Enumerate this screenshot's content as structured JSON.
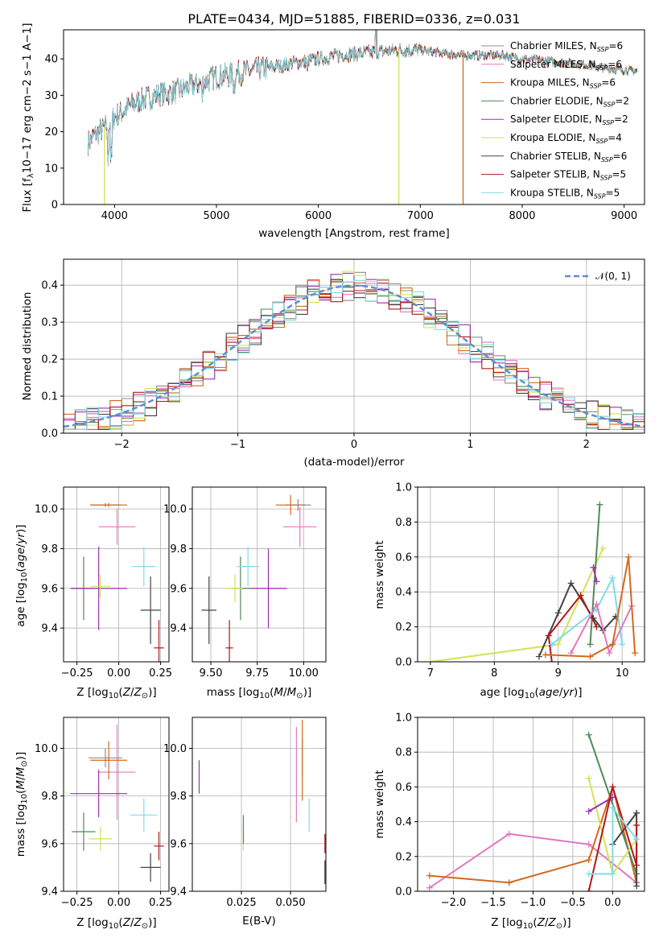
{
  "title": "PLATE=0434, MJD=51885, FIBERID=0336, z=0.031",
  "colors": {
    "Chabrier MILES": "#8c8c8c",
    "Salpeter MILES": "#e377c2",
    "Kroupa MILES": "#d2691e",
    "Chabrier ELODIE": "#4f8a57",
    "Salpeter ELODIE": "#9b30ae",
    "Kroupa ELODIE": "#d4e157",
    "Chabrier STELIB": "#444444",
    "Salpeter STELIB": "#b01a1a",
    "Kroupa STELIB": "#80dbe6"
  },
  "legend_spectrum": [
    {
      "model": "Chabrier MILES",
      "text": "Chabrier MILES, N",
      "sub": "SSP",
      "val": "=6"
    },
    {
      "model": "Salpeter MILES",
      "text": "Salpeter MILES, N",
      "sub": "SSP",
      "val": "=6"
    },
    {
      "model": "Kroupa MILES",
      "text": "Kroupa MILES, N",
      "sub": "SSP",
      "val": "=6"
    },
    {
      "model": "Chabrier ELODIE",
      "text": "Chabrier ELODIE, N",
      "sub": "SSP",
      "val": "=2"
    },
    {
      "model": "Salpeter ELODIE",
      "text": "Salpeter ELODIE, N",
      "sub": "SSP",
      "val": "=2"
    },
    {
      "model": "Kroupa ELODIE",
      "text": "Kroupa ELODIE, N",
      "sub": "SSP",
      "val": "=4"
    },
    {
      "model": "Chabrier STELIB",
      "text": "Chabrier STELIB, N",
      "sub": "SSP",
      "val": "=6"
    },
    {
      "model": "Salpeter STELIB",
      "text": "Salpeter STELIB, N",
      "sub": "SSP",
      "val": "=5"
    },
    {
      "model": "Kroupa STELIB",
      "text": "Kroupa STELIB, N",
      "sub": "SSP",
      "val": "=5"
    }
  ],
  "chart_data": [
    {
      "id": "spectrum",
      "type": "line",
      "xlabel": "wavelength [Angstrom, rest frame]",
      "ylabel": "Flux [fλ10⁻¹⁷ erg cm⁻² s⁻¹ A⁻¹]",
      "xlim": [
        3500,
        9200
      ],
      "ylim": [
        0,
        48
      ],
      "xticks": [
        4000,
        5000,
        6000,
        7000,
        8000,
        9000
      ],
      "yticks": [
        0,
        10,
        20,
        30,
        40
      ],
      "continuum": [
        [
          3740,
          17
        ],
        [
          3800,
          19
        ],
        [
          3900,
          21
        ],
        [
          4000,
          24
        ],
        [
          4100,
          26
        ],
        [
          4200,
          28
        ],
        [
          4400,
          30
        ],
        [
          4600,
          31
        ],
        [
          4800,
          33
        ],
        [
          5000,
          35
        ],
        [
          5200,
          36
        ],
        [
          5400,
          37
        ],
        [
          5600,
          38
        ],
        [
          5800,
          39
        ],
        [
          6000,
          40
        ],
        [
          6200,
          41
        ],
        [
          6400,
          41.5
        ],
        [
          6600,
          42
        ],
        [
          6800,
          42.5
        ],
        [
          7000,
          42.5
        ],
        [
          7200,
          41.5
        ],
        [
          7400,
          41
        ],
        [
          7600,
          41
        ],
        [
          7800,
          41
        ],
        [
          8000,
          40
        ],
        [
          8200,
          39.5
        ],
        [
          8400,
          39
        ],
        [
          8600,
          38.5
        ],
        [
          8800,
          37.5
        ],
        [
          9000,
          37
        ],
        [
          9130,
          36.5
        ]
      ],
      "drops": [
        {
          "model": "Kroupa ELODIE",
          "x": 6790
        },
        {
          "model": "Kroupa MILES",
          "x": 7420
        },
        {
          "model": "Kroupa ELODIE",
          "x": 3900
        }
      ]
    },
    {
      "id": "residuals",
      "type": "histogram",
      "xlabel": "(data-model)/error",
      "ylabel": "Normed distribution",
      "xlim": [
        -2.5,
        2.5
      ],
      "ylim": [
        0,
        0.47
      ],
      "xticks": [
        -2,
        -1,
        0,
        1,
        2
      ],
      "yticks": [
        0.0,
        0.1,
        0.2,
        0.3,
        0.4
      ],
      "bin_width": 0.1,
      "reference": {
        "name": "N(0,1)",
        "color": "#5b8fd6"
      }
    },
    {
      "id": "age-vs-Z",
      "type": "errorbar",
      "xlabel": "Z [log10(Z/Z⊙)]",
      "ylabel": "age [log10(age/yr)]",
      "xlim": [
        -0.33,
        0.3
      ],
      "ylim": [
        9.23,
        10.11
      ],
      "xticks": [
        -0.25,
        0.0,
        0.25
      ],
      "yticks": [
        9.4,
        9.6,
        9.8,
        10.0
      ],
      "points": [
        {
          "model": "Chabrier MILES",
          "x": -0.08,
          "y": 10.02,
          "xerr": 0.09,
          "yerr": 0.01
        },
        {
          "model": "Salpeter MILES",
          "x": -0.01,
          "y": 9.91,
          "xerr": 0.11,
          "yerr": 0.09
        },
        {
          "model": "Kroupa MILES",
          "x": -0.06,
          "y": 10.02,
          "xerr": 0.11,
          "yerr": 0.01
        },
        {
          "model": "Chabrier ELODIE",
          "x": -0.21,
          "y": 9.6,
          "xerr": 0.07,
          "yerr": 0.16
        },
        {
          "model": "Salpeter ELODIE",
          "x": -0.12,
          "y": 9.6,
          "xerr": 0.17,
          "yerr": 0.21
        },
        {
          "model": "Kroupa ELODIE",
          "x": -0.11,
          "y": 9.61,
          "xerr": 0.06,
          "yerr": 0.06
        },
        {
          "model": "Chabrier STELIB",
          "x": 0.19,
          "y": 9.49,
          "xerr": 0.06,
          "yerr": 0.17
        },
        {
          "model": "Salpeter STELIB",
          "x": 0.24,
          "y": 9.3,
          "xerr": 0.03,
          "yerr": 0.14
        },
        {
          "model": "Kroupa STELIB",
          "x": 0.15,
          "y": 9.71,
          "xerr": 0.07,
          "yerr": 0.1
        }
      ]
    },
    {
      "id": "age-vs-mass",
      "type": "errorbar",
      "xlabel": "mass [log10(M/M⊙)]",
      "ylabel": "",
      "xlim": [
        9.4,
        10.12
      ],
      "ylim": [
        9.23,
        10.11
      ],
      "xticks": [
        9.5,
        9.75,
        10.0
      ],
      "yticks": [
        9.4,
        9.6,
        9.8,
        10.0
      ],
      "points": [
        {
          "model": "Chabrier MILES",
          "x": 9.97,
          "y": 10.02,
          "xerr": 0.07,
          "yerr": 0.03
        },
        {
          "model": "Salpeter MILES",
          "x": 9.98,
          "y": 9.91,
          "xerr": 0.09,
          "yerr": 0.1
        },
        {
          "model": "Kroupa MILES",
          "x": 9.93,
          "y": 10.02,
          "xerr": 0.08,
          "yerr": 0.05
        },
        {
          "model": "Chabrier ELODIE",
          "x": 9.66,
          "y": 9.6,
          "xerr": 0.05,
          "yerr": 0.16
        },
        {
          "model": "Salpeter ELODIE",
          "x": 9.81,
          "y": 9.6,
          "xerr": 0.1,
          "yerr": 0.2
        },
        {
          "model": "Kroupa ELODIE",
          "x": 9.63,
          "y": 9.6,
          "xerr": 0.04,
          "yerr": 0.07
        },
        {
          "model": "Chabrier STELIB",
          "x": 9.49,
          "y": 9.49,
          "xerr": 0.04,
          "yerr": 0.17
        },
        {
          "model": "Salpeter STELIB",
          "x": 9.6,
          "y": 9.3,
          "xerr": 0.02,
          "yerr": 0.14
        },
        {
          "model": "Kroupa STELIB",
          "x": 9.7,
          "y": 9.71,
          "xerr": 0.06,
          "yerr": 0.1
        }
      ]
    },
    {
      "id": "weight-vs-age",
      "type": "line",
      "xlabel": "age [log10(age/yr)]",
      "ylabel": "mass weight",
      "xlim": [
        6.8,
        10.35
      ],
      "ylim": [
        0.0,
        1.0
      ],
      "xticks": [
        7,
        8,
        9,
        10
      ],
      "yticks": [
        0.0,
        0.2,
        0.4,
        0.6,
        0.8,
        1.0
      ],
      "series": [
        {
          "model": "Kroupa ELODIE",
          "x": [
            7.0,
            9.0,
            9.7
          ],
          "y": [
            0.0,
            0.1,
            0.65
          ]
        },
        {
          "model": "Chabrier ELODIE",
          "x": [
            9.5,
            9.65
          ],
          "y": [
            0.1,
            0.9
          ]
        },
        {
          "model": "Salpeter ELODIE",
          "x": [
            9.6,
            9.55
          ],
          "y": [
            0.46,
            0.54
          ]
        },
        {
          "model": "Chabrier STELIB",
          "x": [
            8.7,
            9.0,
            9.2,
            9.55,
            9.7,
            9.9
          ],
          "y": [
            0.03,
            0.28,
            0.45,
            0.25,
            0.18,
            0.26
          ]
        },
        {
          "model": "Salpeter STELIB",
          "x": [
            8.9,
            8.85,
            9.35,
            9.6
          ],
          "y": [
            0.0,
            0.15,
            0.38,
            0.2
          ]
        },
        {
          "model": "Kroupa STELIB",
          "x": [
            8.9,
            9.6,
            9.85,
            10.0
          ],
          "y": [
            0.1,
            0.3,
            0.48,
            0.1
          ]
        },
        {
          "model": "Salpeter MILES",
          "x": [
            9.2,
            9.6,
            9.8,
            10.15
          ],
          "y": [
            0.05,
            0.33,
            0.05,
            0.32
          ]
        },
        {
          "model": "Kroupa MILES",
          "x": [
            8.8,
            9.5,
            9.85,
            10.1,
            10.2
          ],
          "y": [
            0.04,
            0.03,
            0.1,
            0.6,
            0.05
          ]
        }
      ]
    },
    {
      "id": "mass-vs-Z",
      "type": "errorbar",
      "xlabel": "Z [log10(Z/Z⊙)]",
      "ylabel": "mass [log10(M/M⊙)]",
      "xlim": [
        -0.33,
        0.3
      ],
      "ylim": [
        9.4,
        10.13
      ],
      "xticks": [
        -0.25,
        0.0,
        0.25
      ],
      "yticks": [
        9.4,
        9.6,
        9.8,
        10.0
      ],
      "points": [
        {
          "model": "Chabrier MILES",
          "x": -0.08,
          "y": 9.96,
          "xerr": 0.1,
          "yerr": 0.04
        },
        {
          "model": "Salpeter MILES",
          "x": -0.01,
          "y": 9.9,
          "xerr": 0.11,
          "yerr": 0.2
        },
        {
          "model": "Kroupa MILES",
          "x": -0.06,
          "y": 9.95,
          "xerr": 0.11,
          "yerr": 0.08
        },
        {
          "model": "Chabrier ELODIE",
          "x": -0.21,
          "y": 9.65,
          "xerr": 0.07,
          "yerr": 0.08
        },
        {
          "model": "Salpeter ELODIE",
          "x": -0.12,
          "y": 9.81,
          "xerr": 0.17,
          "yerr": 0.1
        },
        {
          "model": "Kroupa ELODIE",
          "x": -0.11,
          "y": 9.62,
          "xerr": 0.07,
          "yerr": 0.05
        },
        {
          "model": "Chabrier STELIB",
          "x": 0.19,
          "y": 9.5,
          "xerr": 0.06,
          "yerr": 0.06
        },
        {
          "model": "Salpeter STELIB",
          "x": 0.24,
          "y": 9.59,
          "xerr": 0.03,
          "yerr": 0.06
        },
        {
          "model": "Kroupa STELIB",
          "x": 0.15,
          "y": 9.72,
          "xerr": 0.08,
          "yerr": 0.07
        }
      ]
    },
    {
      "id": "mass-vs-EBV",
      "type": "errorbar",
      "xlabel": "E(B-V)",
      "ylabel": "",
      "xlim": [
        0.0,
        0.068
      ],
      "ylim": [
        9.4,
        10.13
      ],
      "xticks": [
        0.025,
        0.05
      ],
      "yticks": [
        9.4,
        9.6,
        9.8,
        10.0
      ],
      "points": [
        {
          "model": "Salpeter ELODIE",
          "x": 0.0035,
          "y": 9.88,
          "xerr": 0.0,
          "yerr": 0.07
        },
        {
          "model": "Kroupa ELODIE",
          "x": 0.026,
          "y": 9.62,
          "xerr": 0.0,
          "yerr": 0.05
        },
        {
          "model": "Chabrier ELODIE",
          "x": 0.026,
          "y": 9.66,
          "xerr": 0.0,
          "yerr": 0.06
        },
        {
          "model": "Salpeter MILES",
          "x": 0.053,
          "y": 9.89,
          "xerr": 0.0,
          "yerr": 0.2
        },
        {
          "model": "Chabrier MILES",
          "x": 0.056,
          "y": 9.96,
          "xerr": 0.0,
          "yerr": 0.08
        },
        {
          "model": "Kroupa MILES",
          "x": 0.056,
          "y": 9.95,
          "xerr": 0.0,
          "yerr": 0.17
        },
        {
          "model": "Kroupa STELIB",
          "x": 0.0595,
          "y": 9.72,
          "xerr": 0.0,
          "yerr": 0.07
        },
        {
          "model": "Salpeter STELIB",
          "x": 0.0675,
          "y": 9.6,
          "xerr": 0.0,
          "yerr": 0.04
        },
        {
          "model": "Chabrier STELIB",
          "x": 0.0675,
          "y": 9.48,
          "xerr": 0.0,
          "yerr": 0.05
        }
      ]
    },
    {
      "id": "weight-vs-Z",
      "type": "line",
      "xlabel": "Z [log10(Z/Z⊙)]",
      "ylabel": "mass weight",
      "xlim": [
        -2.45,
        0.4
      ],
      "ylim": [
        0.0,
        1.0
      ],
      "xticks": [
        -2.0,
        -1.5,
        -1.0,
        -0.5,
        0.0
      ],
      "yticks": [
        0.0,
        0.2,
        0.4,
        0.6,
        0.8,
        1.0
      ],
      "series": [
        {
          "model": "Salpeter MILES",
          "x": [
            -2.3,
            -1.3,
            -0.3,
            0.3
          ],
          "y": [
            0.02,
            0.33,
            0.27,
            0.05
          ]
        },
        {
          "model": "Kroupa MILES",
          "x": [
            -2.3,
            -1.3,
            -0.3,
            0.0,
            0.3
          ],
          "y": [
            0.09,
            0.05,
            0.18,
            0.6,
            0.05
          ]
        },
        {
          "model": "Chabrier ELODIE",
          "x": [
            -0.3,
            0.3
          ],
          "y": [
            0.9,
            0.1
          ]
        },
        {
          "model": "Kroupa ELODIE",
          "x": [
            -0.3,
            0.0,
            0.3
          ],
          "y": [
            0.65,
            0.1,
            0.3
          ]
        },
        {
          "model": "Salpeter ELODIE",
          "x": [
            -0.3,
            0.0
          ],
          "y": [
            0.46,
            0.54
          ]
        },
        {
          "model": "Chabrier STELIB",
          "x": [
            0.0,
            0.3,
            0.3
          ],
          "y": [
            0.27,
            0.45,
            0.03
          ]
        },
        {
          "model": "Salpeter STELIB",
          "x": [
            -0.3,
            0.0,
            0.3,
            0.3
          ],
          "y": [
            0.0,
            0.6,
            0.15,
            0.38
          ]
        },
        {
          "model": "Kroupa STELIB",
          "x": [
            -0.3,
            0.0,
            0.0,
            0.3
          ],
          "y": [
            0.1,
            0.1,
            0.48,
            0.3
          ]
        }
      ]
    }
  ]
}
